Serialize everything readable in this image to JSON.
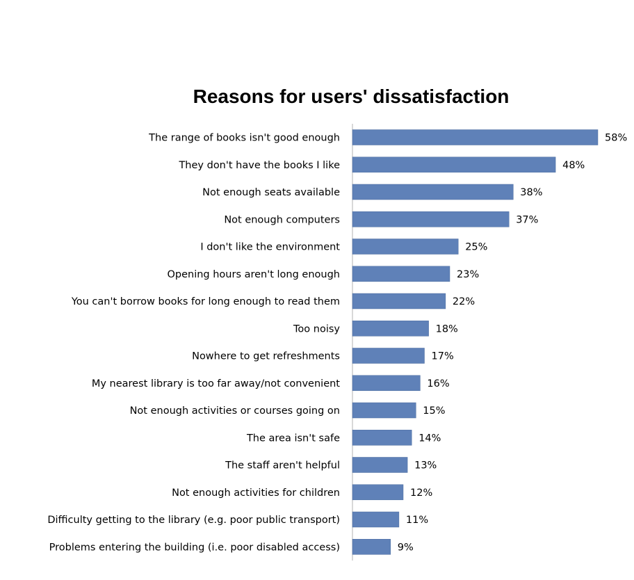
{
  "colors": {
    "bar": "#5F81B8",
    "bar_edge": "#4A6B9E",
    "axis": "#B0B0B0",
    "text": "#000000",
    "background": "#FFFFFF"
  },
  "chart_data": {
    "type": "bar",
    "orientation": "horizontal",
    "title": "Reasons for users' dissatisfaction",
    "xlabel": "",
    "ylabel": "",
    "grid": false,
    "legend": "none",
    "xlim": [
      0,
      58
    ],
    "categories": [
      "The range of books isn't good enough",
      "They don't have the books I like",
      "Not enough seats available",
      "Not enough computers",
      "I don't like the environment",
      "Opening hours aren't long enough",
      "You can't borrow books for long enough to read them",
      "Too noisy",
      "Nowhere to get refreshments",
      "My nearest library is too far away/not convenient",
      "Not enough activities or courses going on",
      "The area isn't safe",
      "The staff aren't helpful",
      "Not enough activities for children",
      "Difficulty getting to the library (e.g. poor public transport)",
      "Problems entering the building (i.e. poor disabled access)"
    ],
    "values": [
      58,
      48,
      38,
      37,
      25,
      23,
      22,
      18,
      17,
      16,
      15,
      14,
      13,
      12,
      11,
      9
    ],
    "data_labels": [
      "58%",
      "48%",
      "38%",
      "37%",
      "25%",
      "23%",
      "22%",
      "18%",
      "17%",
      "16%",
      "15%",
      "14%",
      "13%",
      "12%",
      "11%",
      "9%"
    ]
  }
}
